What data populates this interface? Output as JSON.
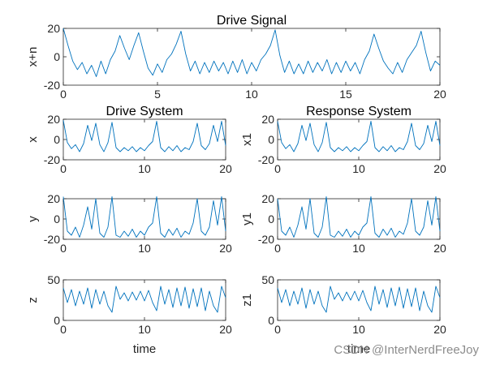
{
  "colors": {
    "line": "#0072BD",
    "axis": "#262626",
    "background": "#ffffff"
  },
  "watermark": "CSDN @InterNerdFreeJoy",
  "chart_data": [
    {
      "id": "drive_signal",
      "type": "line",
      "title": "Drive Signal",
      "xlabel": "",
      "ylabel": "x+n",
      "xlim": [
        0,
        20
      ],
      "ylim": [
        -20,
        20
      ],
      "xticks": [
        0,
        5,
        10,
        15,
        20
      ],
      "yticks": [
        20,
        0,
        -20
      ],
      "x": [
        0,
        0.25,
        0.5,
        0.75,
        1.0,
        1.25,
        1.5,
        1.75,
        2.0,
        2.25,
        2.5,
        2.75,
        3.0,
        3.25,
        3.5,
        3.75,
        4.0,
        4.25,
        4.5,
        4.75,
        5.0,
        5.25,
        5.5,
        5.75,
        6.0,
        6.25,
        6.5,
        6.75,
        7.0,
        7.25,
        7.5,
        7.75,
        8.0,
        8.25,
        8.5,
        8.75,
        9.0,
        9.25,
        9.5,
        9.75,
        10.0,
        10.25,
        10.5,
        10.75,
        11.0,
        11.25,
        11.5,
        11.75,
        12.0,
        12.25,
        12.5,
        12.75,
        13.0,
        13.25,
        13.5,
        13.75,
        14.0,
        14.25,
        14.5,
        14.75,
        15.0,
        15.25,
        15.5,
        15.75,
        16.0,
        16.25,
        16.5,
        16.75,
        17.0,
        17.25,
        17.5,
        17.75,
        18.0,
        18.25,
        18.5,
        18.75,
        19.0,
        19.25,
        19.5,
        19.75,
        20.0
      ],
      "y": [
        20,
        8,
        -3,
        -9,
        -4,
        -12,
        -6,
        -14,
        -3,
        -12,
        -2,
        4,
        15,
        6,
        -2,
        8,
        17,
        4,
        -8,
        -13,
        -5,
        -11,
        -2,
        2,
        9,
        18,
        2,
        -10,
        -3,
        -12,
        -4,
        -11,
        -3,
        -10,
        -4,
        -12,
        -3,
        -11,
        -2,
        -12,
        -4,
        -10,
        -2,
        2,
        8,
        19,
        1,
        -11,
        -3,
        -12,
        -5,
        -12,
        -3,
        -11,
        -4,
        -10,
        -2,
        -12,
        -4,
        -11,
        -3,
        -10,
        -4,
        -12,
        -2,
        4,
        16,
        6,
        -3,
        -8,
        -12,
        -4,
        -11,
        -2,
        3,
        8,
        18,
        3,
        -10,
        -3,
        -6
      ]
    },
    {
      "id": "drive_x",
      "type": "line",
      "title": "Drive System",
      "xlabel": "",
      "ylabel": "x",
      "xlim": [
        0,
        20
      ],
      "ylim": [
        -20,
        20
      ],
      "xticks": [
        0,
        10,
        20
      ],
      "yticks": [
        20,
        0,
        -20
      ],
      "x": [
        0,
        0.5,
        1.0,
        1.5,
        2.0,
        2.5,
        3.0,
        3.5,
        4.0,
        4.5,
        5.0,
        5.5,
        6.0,
        6.5,
        7.0,
        7.5,
        8.0,
        8.5,
        9.0,
        9.5,
        10.0,
        10.5,
        11.0,
        11.5,
        12.0,
        12.5,
        13.0,
        13.5,
        14.0,
        14.5,
        15.0,
        15.5,
        16.0,
        16.5,
        17.0,
        17.5,
        18.0,
        18.5,
        19.0,
        19.5,
        20.0
      ],
      "y": [
        19,
        -3,
        -9,
        -5,
        -12,
        -4,
        14,
        -1,
        16,
        -5,
        -12,
        -3,
        17,
        -8,
        -12,
        -8,
        -11,
        -7,
        -12,
        -8,
        -11,
        -6,
        -2,
        18,
        -8,
        -12,
        -7,
        -11,
        -6,
        -12,
        -8,
        -10,
        -2,
        16,
        -6,
        -10,
        -4,
        14,
        -2,
        18,
        -6
      ]
    },
    {
      "id": "response_x1",
      "type": "line",
      "title": "Response System",
      "xlabel": "",
      "ylabel": "x1",
      "xlim": [
        0,
        20
      ],
      "ylim": [
        -20,
        20
      ],
      "xticks": [
        0,
        10,
        20
      ],
      "yticks": [
        20,
        0,
        -20
      ],
      "x": [
        0,
        0.5,
        1.0,
        1.5,
        2.0,
        2.5,
        3.0,
        3.5,
        4.0,
        4.5,
        5.0,
        5.5,
        6.0,
        6.5,
        7.0,
        7.5,
        8.0,
        8.5,
        9.0,
        9.5,
        10.0,
        10.5,
        11.0,
        11.5,
        12.0,
        12.5,
        13.0,
        13.5,
        14.0,
        14.5,
        15.0,
        15.5,
        16.0,
        16.5,
        17.0,
        17.5,
        18.0,
        18.5,
        19.0,
        19.5,
        20.0
      ],
      "y": [
        18,
        -3,
        -9,
        -5,
        -12,
        -4,
        14,
        -1,
        16,
        -5,
        -12,
        -3,
        17,
        -8,
        -12,
        -8,
        -11,
        -7,
        -12,
        -8,
        -11,
        -6,
        -2,
        18,
        -8,
        -12,
        -7,
        -11,
        -6,
        -12,
        -8,
        -10,
        -2,
        16,
        -6,
        -10,
        -4,
        14,
        -2,
        18,
        -6
      ]
    },
    {
      "id": "drive_y",
      "type": "line",
      "title": "",
      "xlabel": "",
      "ylabel": "y",
      "xlim": [
        0,
        20
      ],
      "ylim": [
        -20,
        20
      ],
      "xticks": [
        0,
        10,
        20
      ],
      "yticks": [
        20,
        0,
        -20
      ],
      "x": [
        0,
        0.5,
        1.0,
        1.5,
        2.0,
        2.5,
        3.0,
        3.5,
        4.0,
        4.5,
        5.0,
        5.5,
        6.0,
        6.5,
        7.0,
        7.5,
        8.0,
        8.5,
        9.0,
        9.5,
        10.0,
        10.5,
        11.0,
        11.5,
        12.0,
        12.5,
        13.0,
        13.5,
        14.0,
        14.5,
        15.0,
        15.5,
        16.0,
        16.5,
        17.0,
        17.5,
        18.0,
        18.5,
        19.0,
        19.5,
        20.0
      ],
      "y": [
        22,
        -12,
        -16,
        -8,
        -18,
        -6,
        12,
        -10,
        20,
        -14,
        -18,
        -8,
        22,
        -16,
        -18,
        -12,
        -17,
        -10,
        -18,
        -12,
        -16,
        -8,
        -4,
        22,
        -14,
        -18,
        -10,
        -16,
        -9,
        -18,
        -12,
        -15,
        -4,
        20,
        -12,
        -16,
        -8,
        18,
        -6,
        22,
        -12
      ]
    },
    {
      "id": "response_y1",
      "type": "line",
      "title": "",
      "xlabel": "",
      "ylabel": "y1",
      "xlim": [
        0,
        20
      ],
      "ylim": [
        -20,
        20
      ],
      "xticks": [
        0,
        10,
        20
      ],
      "yticks": [
        20,
        0,
        -20
      ],
      "x": [
        0,
        0.5,
        1.0,
        1.5,
        2.0,
        2.5,
        3.0,
        3.5,
        4.0,
        4.5,
        5.0,
        5.5,
        6.0,
        6.5,
        7.0,
        7.5,
        8.0,
        8.5,
        9.0,
        9.5,
        10.0,
        10.5,
        11.0,
        11.5,
        12.0,
        12.5,
        13.0,
        13.5,
        14.0,
        14.5,
        15.0,
        15.5,
        16.0,
        16.5,
        17.0,
        17.5,
        18.0,
        18.5,
        19.0,
        19.5,
        20.0
      ],
      "y": [
        20,
        -12,
        -16,
        -8,
        -18,
        -6,
        12,
        -10,
        20,
        -14,
        -18,
        -8,
        22,
        -16,
        -18,
        -12,
        -17,
        -10,
        -18,
        -12,
        -16,
        -8,
        -4,
        22,
        -14,
        -18,
        -10,
        -16,
        -9,
        -18,
        -12,
        -15,
        -4,
        20,
        -12,
        -16,
        -8,
        18,
        -6,
        22,
        -12
      ]
    },
    {
      "id": "drive_z",
      "type": "line",
      "title": "",
      "xlabel": "time",
      "ylabel": "z",
      "xlim": [
        0,
        20
      ],
      "ylim": [
        0,
        50
      ],
      "xticks": [
        0,
        10,
        20
      ],
      "yticks": [
        50,
        0
      ],
      "x": [
        0,
        0.5,
        1.0,
        1.5,
        2.0,
        2.5,
        3.0,
        3.5,
        4.0,
        4.5,
        5.0,
        5.5,
        6.0,
        6.5,
        7.0,
        7.5,
        8.0,
        8.5,
        9.0,
        9.5,
        10.0,
        10.5,
        11.0,
        11.5,
        12.0,
        12.5,
        13.0,
        13.5,
        14.0,
        14.5,
        15.0,
        15.5,
        16.0,
        16.5,
        17.0,
        17.5,
        18.0,
        18.5,
        19.0,
        19.5,
        20.0
      ],
      "y": [
        40,
        22,
        38,
        18,
        36,
        20,
        40,
        15,
        38,
        20,
        36,
        18,
        10,
        42,
        26,
        34,
        24,
        35,
        25,
        36,
        24,
        37,
        22,
        12,
        42,
        20,
        38,
        16,
        40,
        18,
        41,
        15,
        39,
        17,
        40,
        12,
        36,
        18,
        10,
        42,
        28
      ]
    },
    {
      "id": "response_z1",
      "type": "line",
      "title": "",
      "xlabel": "time",
      "ylabel": "z1",
      "xlim": [
        0,
        20
      ],
      "ylim": [
        0,
        50
      ],
      "xticks": [
        0,
        10,
        20
      ],
      "yticks": [
        50,
        0
      ],
      "x": [
        0,
        0.5,
        1.0,
        1.5,
        2.0,
        2.5,
        3.0,
        3.5,
        4.0,
        4.5,
        5.0,
        5.5,
        6.0,
        6.5,
        7.0,
        7.5,
        8.0,
        8.5,
        9.0,
        9.5,
        10.0,
        10.5,
        11.0,
        11.5,
        12.0,
        12.5,
        13.0,
        13.5,
        14.0,
        14.5,
        15.0,
        15.5,
        16.0,
        16.5,
        17.0,
        17.5,
        18.0,
        18.5,
        19.0,
        19.5,
        20.0
      ],
      "y": [
        40,
        22,
        38,
        18,
        36,
        20,
        40,
        15,
        38,
        20,
        36,
        18,
        10,
        42,
        26,
        34,
        24,
        35,
        25,
        36,
        24,
        37,
        22,
        12,
        42,
        20,
        38,
        16,
        40,
        18,
        41,
        15,
        39,
        17,
        40,
        12,
        36,
        18,
        10,
        42,
        28
      ]
    }
  ]
}
